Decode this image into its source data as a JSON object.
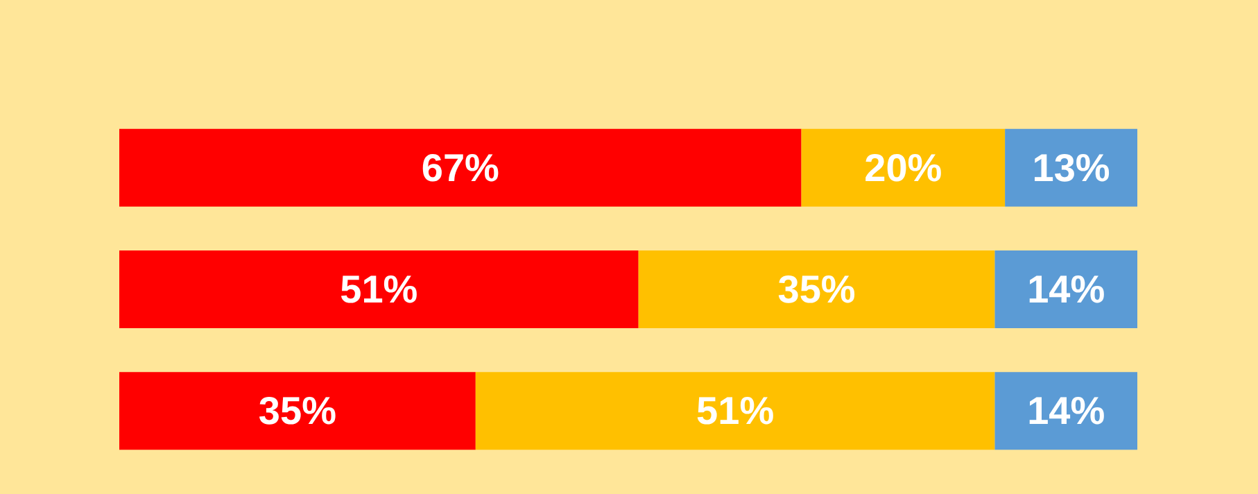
{
  "chart_data": {
    "type": "bar",
    "orientation": "horizontal",
    "stacked": true,
    "categories": [
      null,
      null,
      null
    ],
    "series": [
      {
        "color": "#ff0000",
        "values": [
          67,
          51,
          35
        ],
        "value_labels": [
          "67%",
          "51%",
          "35%"
        ]
      },
      {
        "color": "#ffc000",
        "values": [
          20,
          35,
          51
        ],
        "value_labels": [
          "20%",
          "35%",
          "51%"
        ]
      },
      {
        "color": "#5b9bd5",
        "values": [
          13,
          14,
          14
        ],
        "value_labels": [
          "13%",
          "14%",
          "14%"
        ]
      }
    ]
  }
}
